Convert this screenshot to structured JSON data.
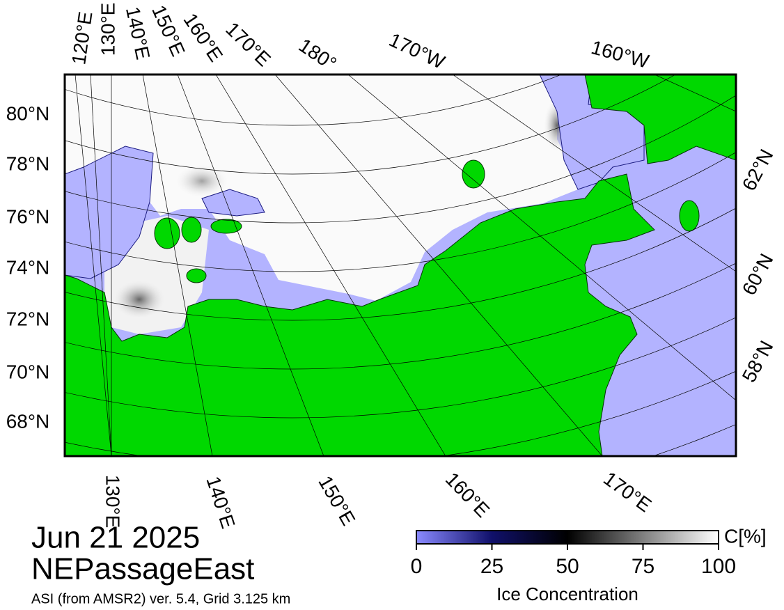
{
  "map": {
    "title": "Jun 21 2025",
    "region": "NEPassageEast",
    "source": "ASI (from AMSR2) ver. 5.4,  Grid 3.125 km",
    "top_labels": [
      "120°E",
      "130°E",
      "140°E",
      "150°E",
      "160°E",
      "170°E",
      "180°",
      "170°W",
      "160°W"
    ],
    "left_labels": [
      "80°N",
      "78°N",
      "76°N",
      "74°N",
      "72°N",
      "70°N",
      "68°N"
    ],
    "right_labels": [
      "62°N",
      "60°N",
      "58°N"
    ],
    "bottom_labels": [
      "130°E",
      "140°E",
      "150°E",
      "160°E",
      "170°E"
    ],
    "colorbar": {
      "label": "Ice Concentration",
      "unit": "C[%]",
      "range": [
        0,
        100
      ],
      "ticks": [
        0,
        25,
        50,
        75,
        100
      ]
    }
  }
}
